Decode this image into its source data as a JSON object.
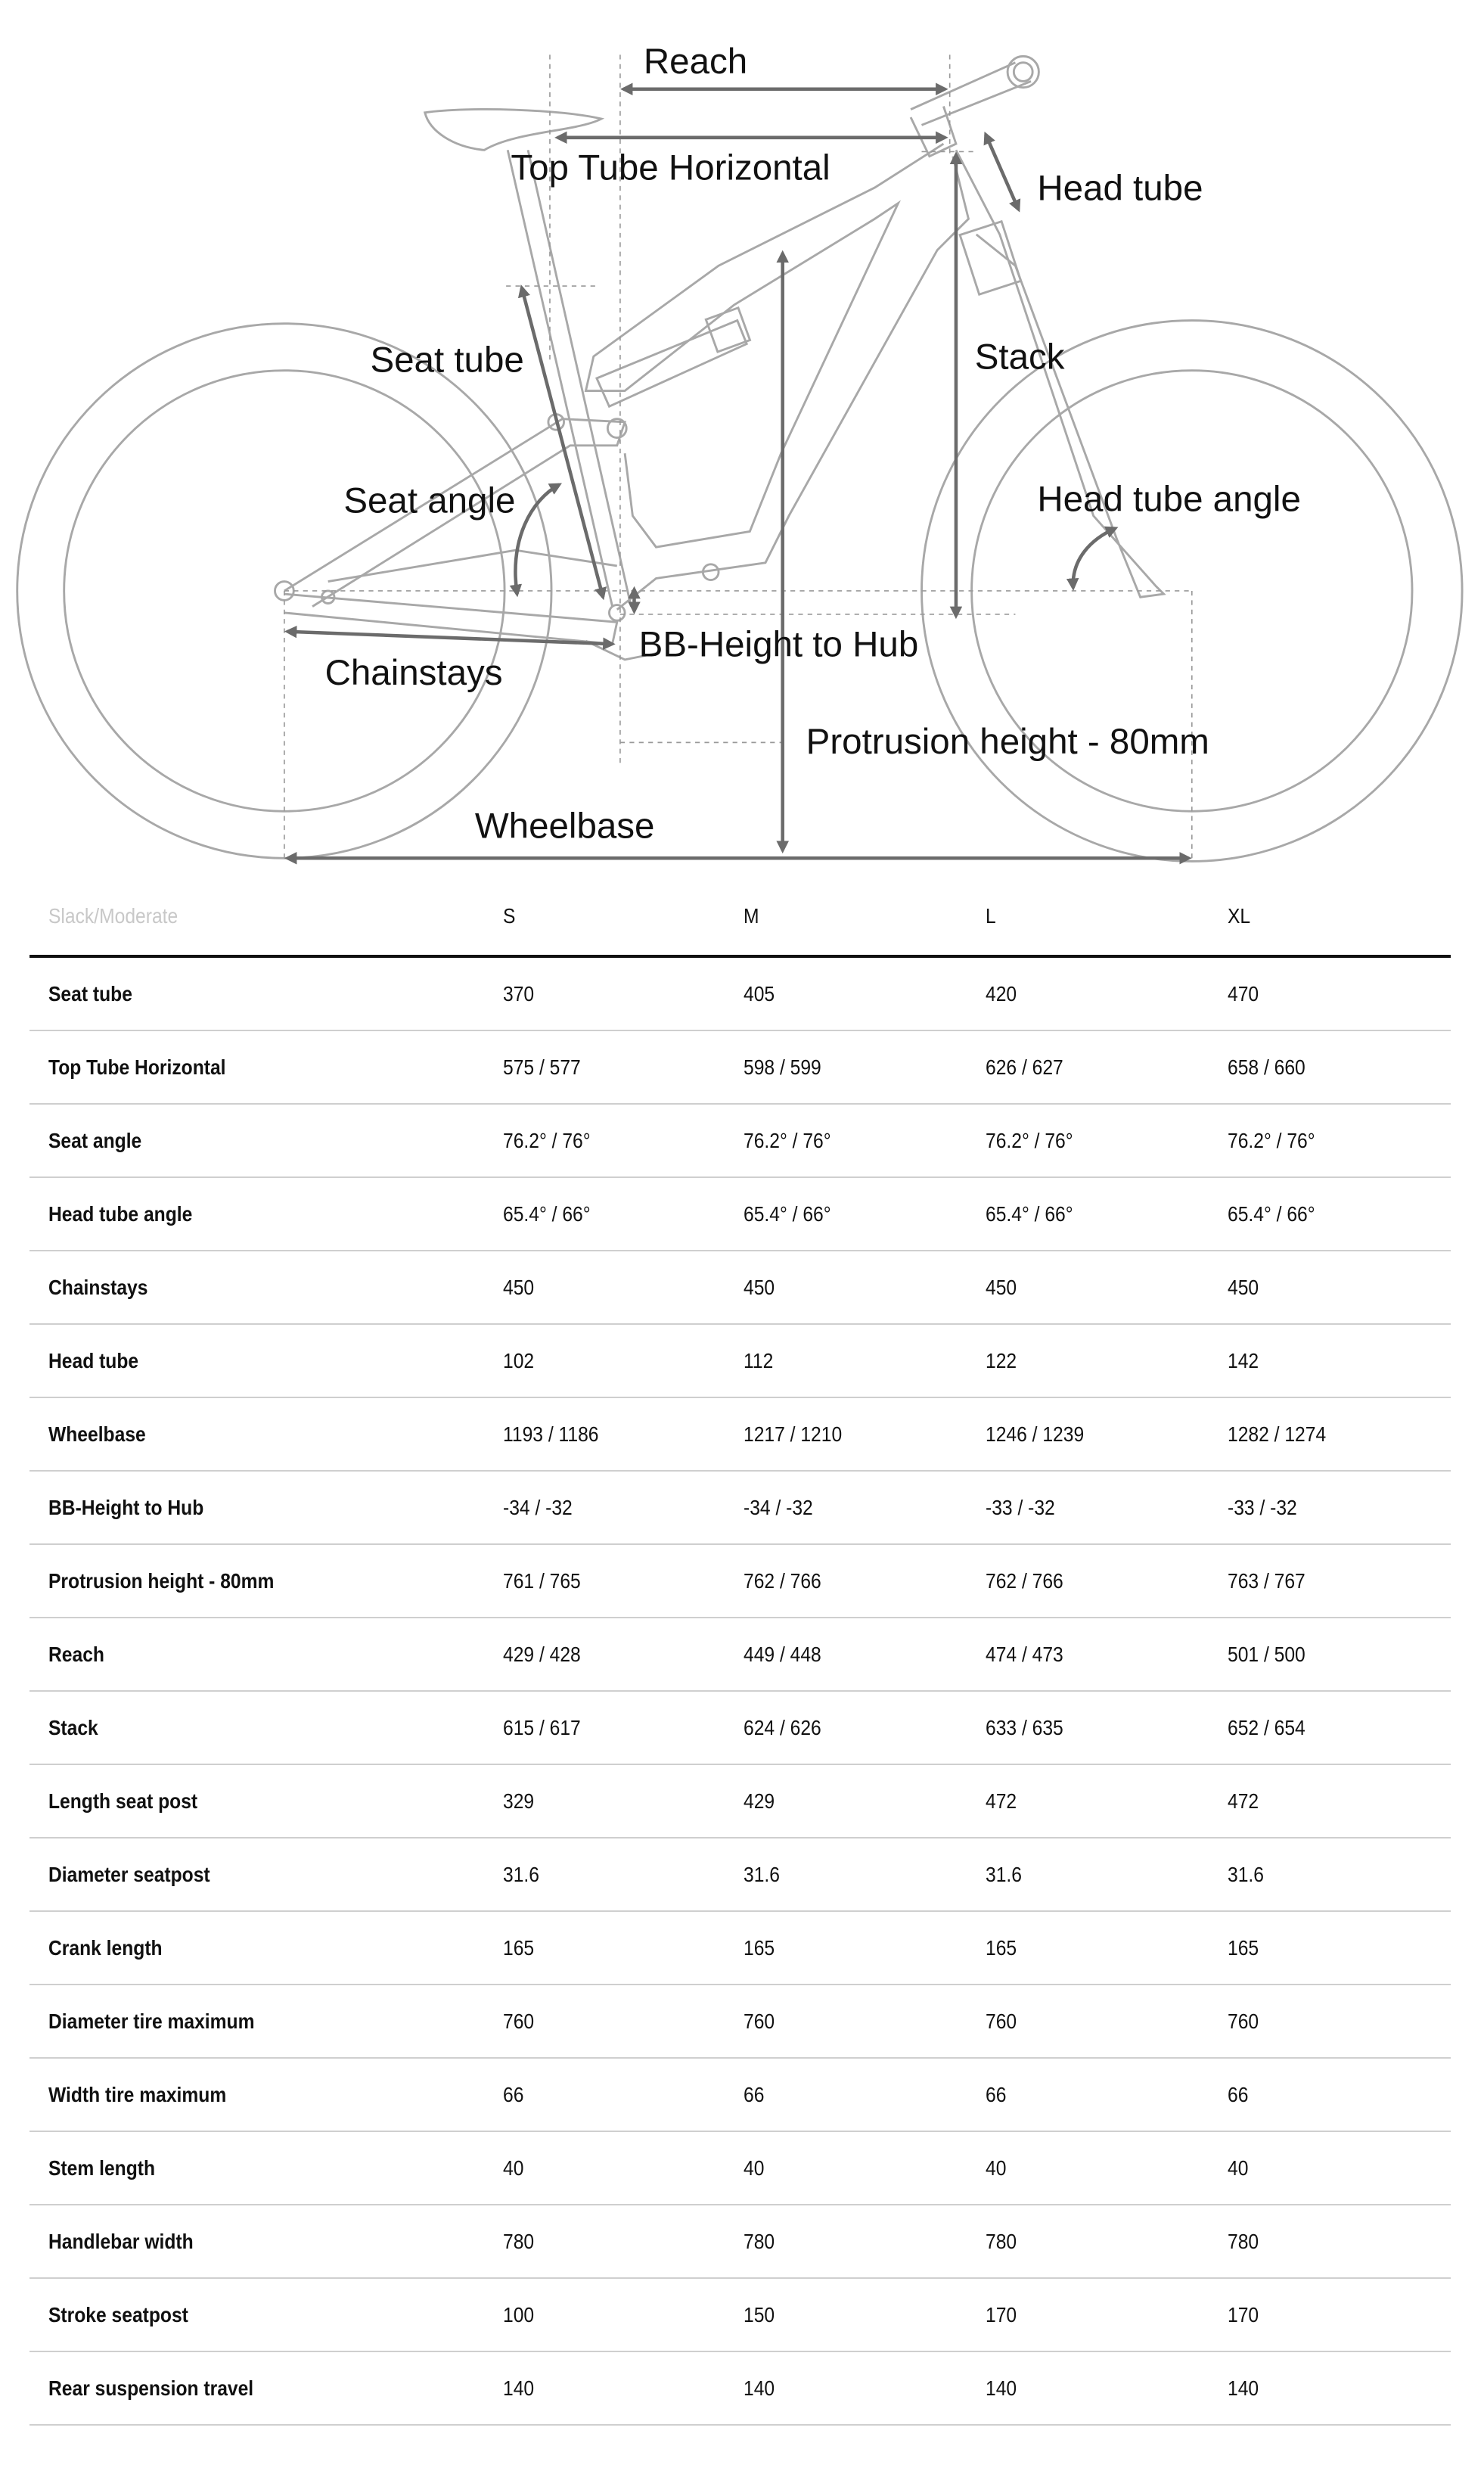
{
  "diagram": {
    "labels": {
      "reach": "Reach",
      "top_tube_horizontal": "Top Tube Horizontal",
      "head_tube": "Head tube",
      "seat_tube": "Seat tube",
      "stack": "Stack",
      "seat_angle": "Seat angle",
      "head_tube_angle": "Head tube angle",
      "chainstays": "Chainstays",
      "bb_height_to_hub": "BB-Height to Hub",
      "protrusion_height": "Protrusion height - 80mm",
      "wheelbase": "Wheelbase"
    }
  },
  "table": {
    "header": [
      "Slack/Moderate",
      "S",
      "M",
      "L",
      "XL"
    ],
    "rows": [
      [
        "Seat tube",
        "370",
        "405",
        "420",
        "470"
      ],
      [
        "Top Tube Horizontal",
        "575 / 577",
        "598 / 599",
        "626 / 627",
        "658 / 660"
      ],
      [
        "Seat angle",
        "76.2° / 76°",
        "76.2° / 76°",
        "76.2° / 76°",
        "76.2° / 76°"
      ],
      [
        "Head tube angle",
        "65.4° / 66°",
        "65.4° / 66°",
        "65.4° / 66°",
        "65.4° / 66°"
      ],
      [
        "Chainstays",
        "450",
        "450",
        "450",
        "450"
      ],
      [
        "Head tube",
        "102",
        "112",
        "122",
        "142"
      ],
      [
        "Wheelbase",
        "1193 / 1186",
        "1217 / 1210",
        "1246 / 1239",
        "1282 / 1274"
      ],
      [
        "BB-Height to Hub",
        "-34 / -32",
        "-34 / -32",
        "-33 / -32",
        "-33 / -32"
      ],
      [
        "Protrusion height - 80mm",
        "761 / 765",
        "762 / 766",
        "762 / 766",
        "763 / 767"
      ],
      [
        "Reach",
        "429 / 428",
        "449 / 448",
        "474 / 473",
        "501 / 500"
      ],
      [
        "Stack",
        "615 / 617",
        "624 / 626",
        "633 / 635",
        "652 / 654"
      ],
      [
        "Length seat post",
        "329",
        "429",
        "472",
        "472"
      ],
      [
        "Diameter seatpost",
        "31.6",
        "31.6",
        "31.6",
        "31.6"
      ],
      [
        "Crank length",
        "165",
        "165",
        "165",
        "165"
      ],
      [
        "Diameter tire maximum",
        "760",
        "760",
        "760",
        "760"
      ],
      [
        "Width tire maximum",
        "66",
        "66",
        "66",
        "66"
      ],
      [
        "Stem length",
        "40",
        "40",
        "40",
        "40"
      ],
      [
        "Handlebar width",
        "780",
        "780",
        "780",
        "780"
      ],
      [
        "Stroke seatpost",
        "100",
        "150",
        "170",
        "170"
      ],
      [
        "Rear suspension travel",
        "140",
        "140",
        "140",
        "140"
      ]
    ]
  }
}
